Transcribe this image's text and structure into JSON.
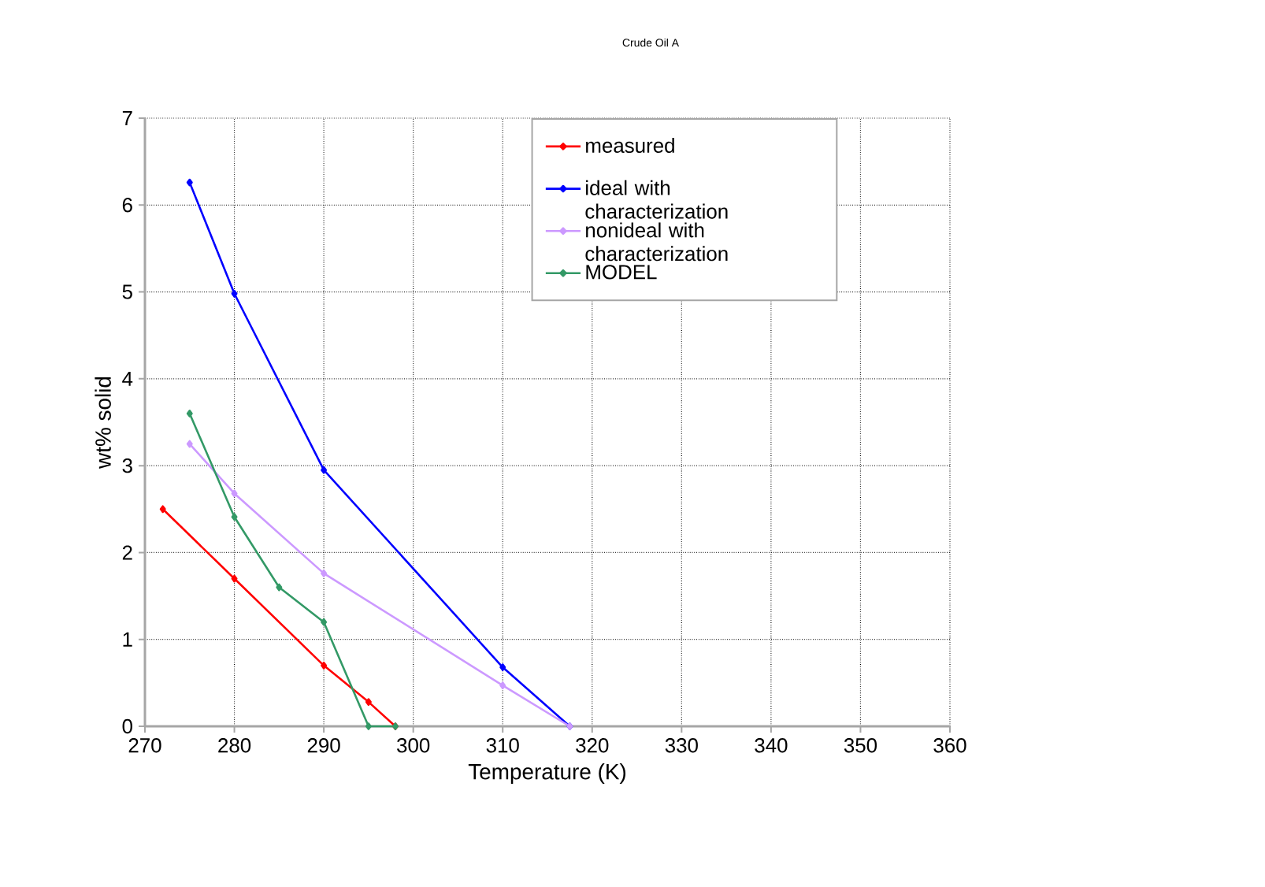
{
  "chart_data": {
    "type": "line",
    "title": "Crude Oil A",
    "xlabel": "Temperature (K)",
    "ylabel": "wt% solid",
    "xlim": [
      270,
      360
    ],
    "xticks": [
      270,
      280,
      290,
      300,
      310,
      320,
      330,
      340,
      350,
      360
    ],
    "ylim": [
      0,
      7
    ],
    "yticks": [
      0,
      1,
      2,
      3,
      4,
      5,
      6,
      7
    ],
    "grid": true,
    "legend": "top right",
    "marker": "diamond",
    "line_style": "solid",
    "series": [
      {
        "name": "measured",
        "color": "#ff0000",
        "x": [
          272,
          280,
          290,
          295,
          298
        ],
        "values": [
          2.5,
          1.7,
          0.7,
          0.28,
          0
        ]
      },
      {
        "name": "ideal with characterization",
        "color": "#0000ff",
        "x": [
          275,
          280,
          290,
          310,
          317.5
        ],
        "values": [
          6.26,
          4.98,
          2.95,
          0.68,
          0
        ]
      },
      {
        "name": "nonideal with characterization",
        "color": "#cc99ff",
        "x": [
          275,
          280,
          290,
          310,
          317.5
        ],
        "values": [
          3.25,
          2.68,
          1.76,
          0.47,
          0
        ]
      },
      {
        "name": "MODEL",
        "color": "#339966",
        "x": [
          275,
          280,
          285,
          290,
          295,
          298
        ],
        "values": [
          3.6,
          2.41,
          1.6,
          1.2,
          0,
          0
        ]
      }
    ]
  }
}
